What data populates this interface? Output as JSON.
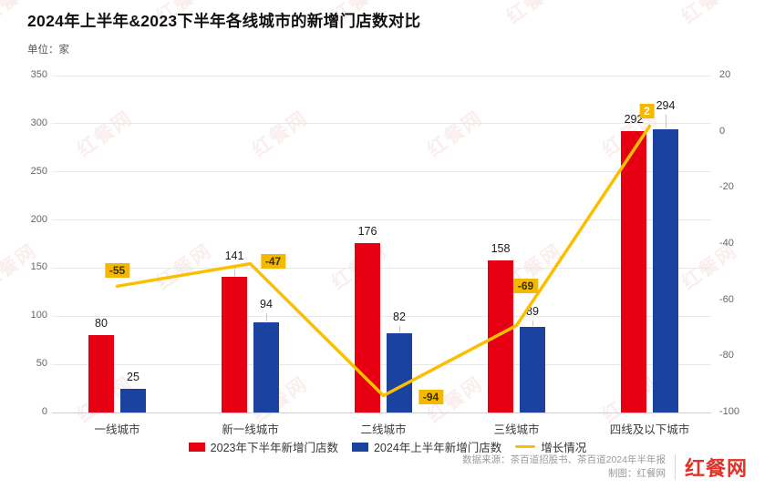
{
  "title": "2024年上半年&2023下半年各线城市的新增门店数对比",
  "unit_label": "单位：家",
  "watermark_text": "红餐网",
  "chart_data": {
    "type": "bar",
    "subtype": "grouped bars with secondary-axis line",
    "categories": [
      "一线城市",
      "新一线城市",
      "二线城市",
      "三线城市",
      "四线及以下城市"
    ],
    "series": [
      {
        "name": "2023年下半年新增门店数",
        "type": "bar",
        "axis": "left",
        "values": [
          80,
          141,
          176,
          158,
          292
        ]
      },
      {
        "name": "2024年上半年新增门店数",
        "type": "bar",
        "axis": "left",
        "values": [
          25,
          94,
          82,
          89,
          294
        ]
      },
      {
        "name": "增长情况",
        "type": "line",
        "axis": "right",
        "values": [
          -55,
          -47,
          -94,
          -69,
          2
        ]
      }
    ],
    "left_axis": {
      "ticks": [
        350,
        300,
        250,
        200,
        150,
        100,
        50,
        0
      ],
      "range": [
        0,
        350
      ]
    },
    "right_axis": {
      "ticks": [
        20,
        0,
        -20,
        -40,
        -60,
        -80,
        -100
      ],
      "range": [
        -100,
        20
      ]
    },
    "grid": "horizontal gridlines on left-axis ticks",
    "legend_position": "bottom center"
  },
  "colors": {
    "bar_2023h2": "#e60012",
    "bar_2024h1": "#1c429f",
    "growth_line": "#fcbf00",
    "growth_label_bg": "#f5b800",
    "growth_label_text_dark": "#3b3000",
    "growth_label_text_light": "#ffffff"
  },
  "footer": {
    "source_line": "数据来源：茶百道招股书、茶百道2024年半年报",
    "credit_line": "制图：红餐网",
    "logo": "红餐网"
  }
}
